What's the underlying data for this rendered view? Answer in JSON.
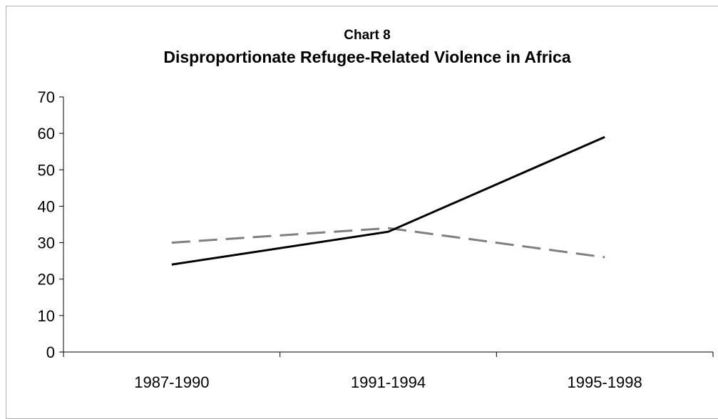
{
  "chart_data": {
    "type": "line",
    "title": "Chart 8",
    "subtitle": "Disproportionate Refugee-Related Violence in Africa",
    "xlabel": "",
    "ylabel": "",
    "categories": [
      "1987-1990",
      "1991-1994",
      "1995-1998"
    ],
    "ylim": [
      0,
      70
    ],
    "yticks": [
      0,
      10,
      20,
      30,
      40,
      50,
      60,
      70
    ],
    "grid": false,
    "legend": "none",
    "series": [
      {
        "values": [
          24,
          33,
          59
        ],
        "color": "#000000",
        "style": "solid"
      },
      {
        "values": [
          30,
          34,
          26
        ],
        "color": "#808080",
        "style": "dashed"
      }
    ]
  }
}
